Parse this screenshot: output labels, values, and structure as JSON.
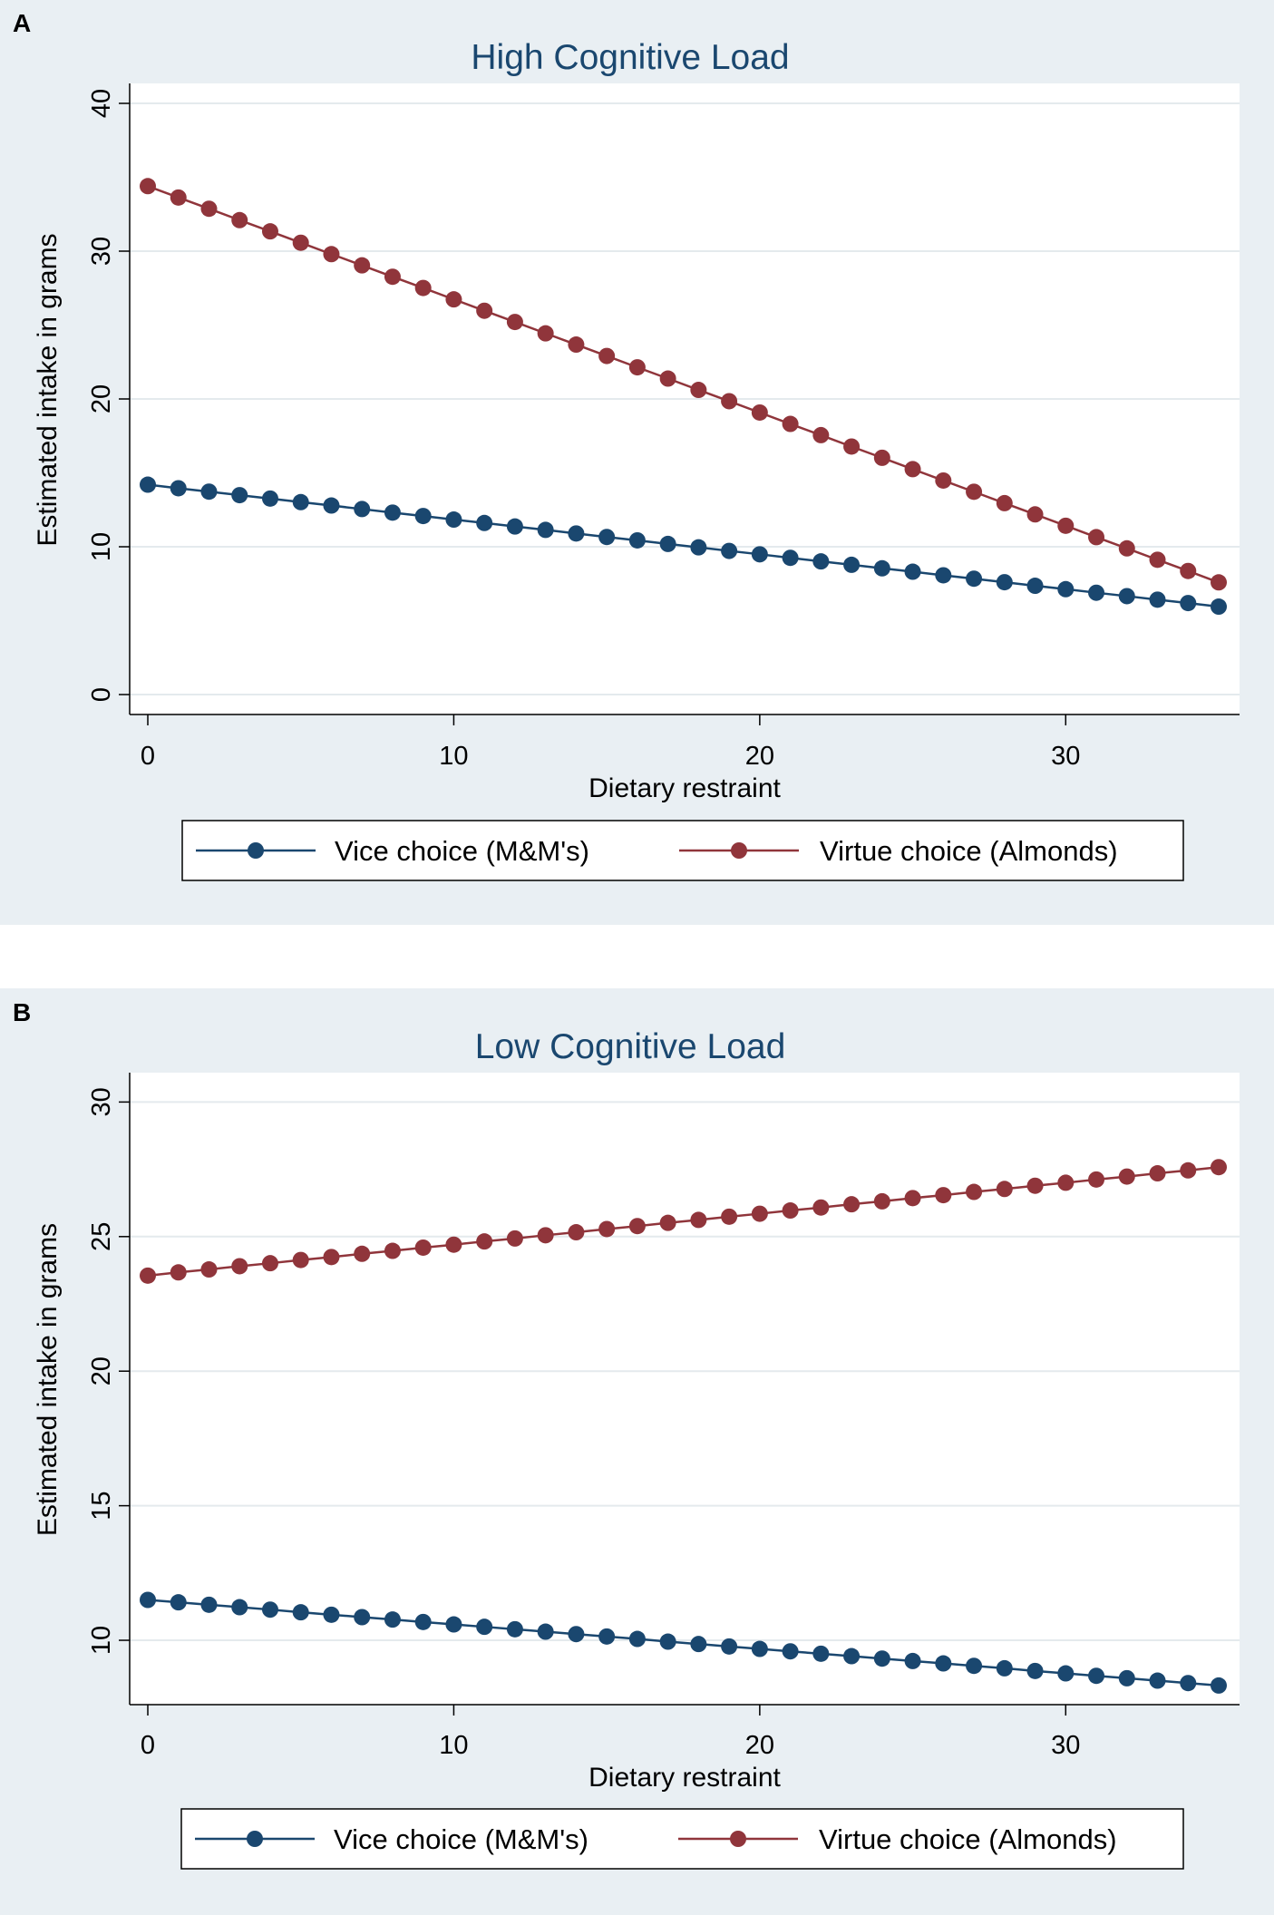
{
  "colors": {
    "panel_background": "#e9eff3",
    "plot_background": "#ffffff",
    "vice": "#1a476f",
    "virtue": "#90353b",
    "grid": "#e4eaed",
    "axis": "#000000",
    "title": "#1a476f"
  },
  "chart_data": [
    {
      "panel_label": "A",
      "type": "line",
      "title": "High Cognitive Load",
      "xlabel": "Dietary restraint",
      "ylabel": "Estimated intake in grams",
      "xlim": [
        0,
        35
      ],
      "ylim": [
        0,
        40
      ],
      "x_ticks": [
        0,
        10,
        20,
        30
      ],
      "y_ticks": [
        0,
        10,
        20,
        30,
        40
      ],
      "x_tick_labels": [
        "0",
        "10",
        "20",
        "30"
      ],
      "y_tick_labels": [
        "0",
        "10",
        "20",
        "30",
        "40"
      ],
      "grid": true,
      "legend_position": "bottom",
      "x": [
        0,
        1,
        2,
        3,
        4,
        5,
        6,
        7,
        8,
        9,
        10,
        11,
        12,
        13,
        14,
        15,
        16,
        17,
        18,
        19,
        20,
        21,
        22,
        23,
        24,
        25,
        26,
        27,
        28,
        29,
        30,
        31,
        32,
        33,
        34,
        35
      ],
      "series": [
        {
          "name": "Vice choice (M&M's)",
          "color": "#1a476f",
          "values": [
            14.2,
            13.96,
            13.73,
            13.49,
            13.26,
            13.02,
            12.79,
            12.55,
            12.31,
            12.08,
            11.84,
            11.61,
            11.37,
            11.14,
            10.9,
            10.66,
            10.43,
            10.19,
            9.96,
            9.72,
            9.49,
            9.25,
            9.01,
            8.78,
            8.54,
            8.31,
            8.07,
            7.84,
            7.6,
            7.36,
            7.13,
            6.89,
            6.66,
            6.42,
            6.19,
            5.95
          ]
        },
        {
          "name": "Virtue choice (Almonds)",
          "color": "#90353b",
          "values": [
            34.4,
            33.63,
            32.87,
            32.1,
            31.34,
            30.57,
            29.8,
            29.04,
            28.27,
            27.51,
            26.74,
            25.97,
            25.21,
            24.44,
            23.68,
            22.91,
            22.14,
            21.38,
            20.61,
            19.85,
            19.08,
            18.31,
            17.55,
            16.78,
            16.02,
            15.25,
            14.48,
            13.72,
            12.95,
            12.19,
            11.42,
            10.65,
            9.89,
            9.12,
            8.36,
            7.59
          ]
        }
      ]
    },
    {
      "panel_label": "B",
      "type": "line",
      "title": "Low Cognitive Load",
      "xlabel": "Dietary restraint",
      "ylabel": "Estimated intake in grams",
      "xlim": [
        0,
        35
      ],
      "ylim": [
        8.35,
        30.35
      ],
      "x_ticks": [
        0,
        10,
        20,
        30
      ],
      "y_ticks": [
        10,
        15,
        20,
        25,
        30
      ],
      "x_tick_labels": [
        "0",
        "10",
        "20",
        "30"
      ],
      "y_tick_labels": [
        "10",
        "15",
        "20",
        "25",
        "30"
      ],
      "grid": true,
      "legend_position": "bottom",
      "x": [
        0,
        1,
        2,
        3,
        4,
        5,
        6,
        7,
        8,
        9,
        10,
        11,
        12,
        13,
        14,
        15,
        16,
        17,
        18,
        19,
        20,
        21,
        22,
        23,
        24,
        25,
        26,
        27,
        28,
        29,
        30,
        31,
        32,
        33,
        34,
        35
      ],
      "series": [
        {
          "name": "Vice choice (M&M's)",
          "color": "#1a476f",
          "values": [
            11.5,
            11.41,
            11.32,
            11.23,
            11.14,
            11.04,
            10.95,
            10.86,
            10.77,
            10.68,
            10.59,
            10.5,
            10.41,
            10.32,
            10.23,
            10.14,
            10.05,
            9.95,
            9.86,
            9.77,
            9.68,
            9.59,
            9.5,
            9.41,
            9.32,
            9.23,
            9.14,
            9.05,
            8.96,
            8.86,
            8.77,
            8.68,
            8.59,
            8.5,
            8.41,
            8.32
          ]
        },
        {
          "name": "Virtue choice (Almonds)",
          "color": "#90353b",
          "values": [
            23.55,
            23.67,
            23.78,
            23.9,
            24.01,
            24.13,
            24.24,
            24.36,
            24.47,
            24.59,
            24.7,
            24.82,
            24.93,
            25.05,
            25.16,
            25.28,
            25.39,
            25.51,
            25.62,
            25.74,
            25.85,
            25.97,
            26.08,
            26.2,
            26.31,
            26.43,
            26.54,
            26.66,
            26.77,
            26.89,
            27.0,
            27.12,
            27.23,
            27.35,
            27.46,
            27.58
          ]
        }
      ]
    }
  ]
}
